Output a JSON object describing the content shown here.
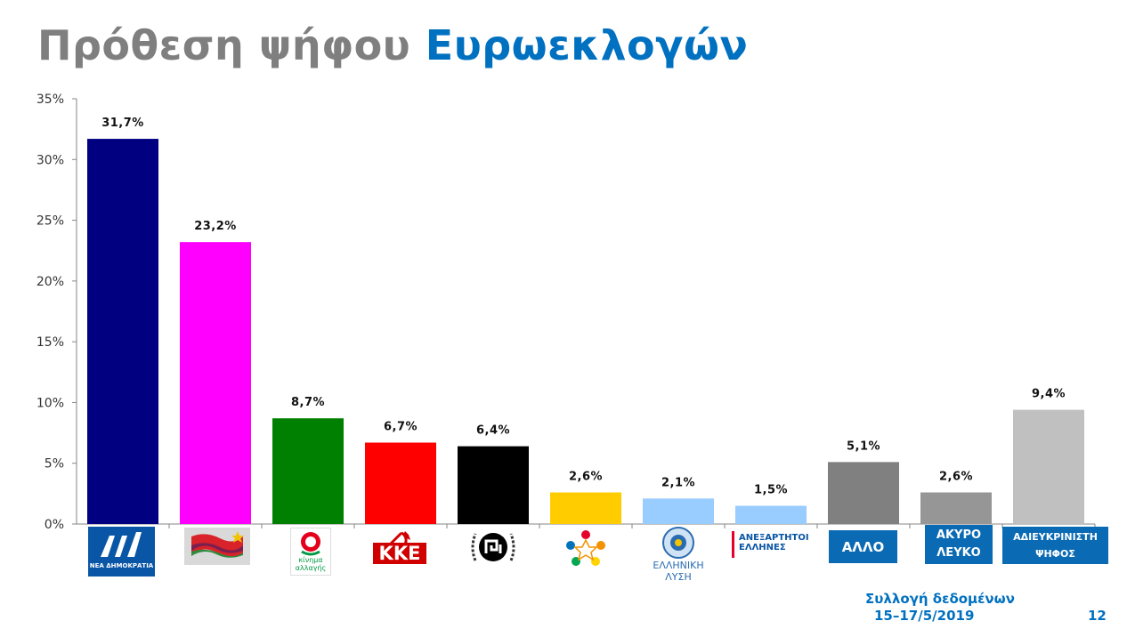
{
  "slide": {
    "title_part1": "Πρόθεση ψήφου",
    "title_part2": "Ευρωεκλογών",
    "footer_line1": "Συλλογή δεδομένων",
    "footer_line2": "15–17/5/2019",
    "page_number": "12"
  },
  "logos": {
    "nd_text": "ΝΕΑ ΔΗΜΟΚΡΑΤΙΑ",
    "kinal_line1": "κίνημα",
    "kinal_line2": "αλλαγής",
    "kke_text": "ΚΚΕ",
    "el_lysi_line1": "ΕΛΛΗΝΙΚΗ",
    "el_lysi_line2": "ΛΥΣΗ",
    "anel_line1": "ΑΝΕΞΑΡΤΗΤΟΙ",
    "anel_line2": "ΕΛΛΗΝΕΣ",
    "allo": "ΑΛΛΟ",
    "akyro_line1": "ΑΚΥΡΟ",
    "akyro_line2": "ΛΕΥΚΟ",
    "adieuk_line1": "ΑΔΙΕΥΚΡΙΝΙΣΤΗ",
    "adieuk_line2": "ΨΗΦΟΣ"
  },
  "colors": {
    "nd": "#000080",
    "syriza": "#ff00ff",
    "kinal": "#008000",
    "kke": "#ff0000",
    "xa": "#000000",
    "mera25": "#ffcc00",
    "ellysi": "#99ccff",
    "anel": "#99ccff",
    "allo": "#808080",
    "akyro": "#969696",
    "adieuk": "#c0c0c0",
    "accent": "#0070c0"
  },
  "chart_data": {
    "type": "bar",
    "categories": [
      "ΝΕΑ ΔΗΜΟΚΡΑΤΙΑ",
      "ΣΥΡΙΖΑ",
      "ΚΙΝΗΜΑ ΑΛΛΑΓΗΣ",
      "ΚΚΕ",
      "ΧΡΥΣΗ ΑΥΓΗ",
      "ΜΕΡΑ25",
      "ΕΛΛΗΝΙΚΗ ΛΥΣΗ",
      "ΑΝΕΞΑΡΤΗΤΟΙ ΕΛΛΗΝΕΣ",
      "ΑΛΛΟ",
      "ΑΚΥΡΟ ΛΕΥΚΟ",
      "ΑΔΙΕΥΚΡΙΝΙΣΤΗ ΨΗΦΟΣ"
    ],
    "values": [
      31.7,
      23.2,
      8.7,
      6.7,
      6.4,
      2.6,
      2.1,
      1.5,
      5.1,
      2.6,
      9.4
    ],
    "value_labels": [
      "31,7%",
      "23,2%",
      "8,7%",
      "6,7%",
      "6,4%",
      "2,6%",
      "2,1%",
      "1,5%",
      "5,1%",
      "2,6%",
      "9,4%"
    ],
    "bar_colors": [
      "#000080",
      "#ff00ff",
      "#008000",
      "#ff0000",
      "#000000",
      "#ffcc00",
      "#99ccff",
      "#99ccff",
      "#808080",
      "#969696",
      "#c0c0c0"
    ],
    "yticks": [
      "0%",
      "5%",
      "10%",
      "15%",
      "20%",
      "25%",
      "30%",
      "35%"
    ],
    "ylim": [
      0,
      35
    ],
    "ystep": 5,
    "grid": false,
    "legend": "none"
  }
}
